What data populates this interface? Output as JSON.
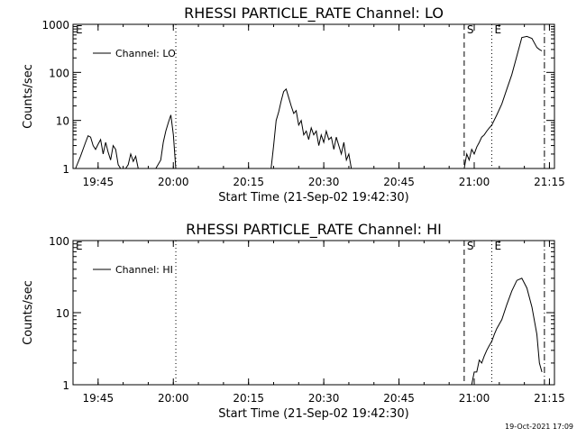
{
  "colors": {
    "background": "#ffffff",
    "foreground": "#000000"
  },
  "footer": {
    "timestamp": "19-Oct-2021 17:09"
  },
  "chart_data": [
    {
      "type": "line",
      "title": "RHESSI PARTICLE_RATE Channel: LO",
      "xlabel": "Start Time (21-Sep-02 19:42:30)",
      "ylabel": "Counts/sec",
      "yscale": "log",
      "xlim": [
        -2.5,
        93.5
      ],
      "ylim": [
        1,
        1000
      ],
      "x_tick_labels": [
        "19:45",
        "20:00",
        "20:15",
        "20:30",
        "20:45",
        "21:00",
        "21:15"
      ],
      "y_tick_labels": [
        "1",
        "10",
        "100",
        "1000"
      ],
      "legend": {
        "entries": [
          "Channel: LO"
        ],
        "placement": "top-left",
        "line_style": "solid"
      },
      "markers": [
        {
          "label": "E",
          "x": -2.5,
          "style": "dashed"
        },
        {
          "label": "",
          "x": 18.0,
          "style": "dotted"
        },
        {
          "label": "S",
          "x": 75.5,
          "style": "dashed"
        },
        {
          "label": "E",
          "x": 81.0,
          "style": "dotted"
        },
        {
          "label": "",
          "x": 91.5,
          "style": "dash-dot"
        }
      ],
      "series": [
        {
          "name": "Channel: LO",
          "x": [
            -2.0,
            -1.0,
            0.0,
            0.5,
            1.0,
            1.5,
            2.0,
            2.5,
            3.0,
            3.5,
            4.0,
            4.5,
            5.0,
            5.5,
            6.0,
            6.5,
            7.0,
            7.5,
            8.0,
            8.5,
            9.0,
            9.5,
            10.0,
            10.5,
            11.0,
            11.5,
            12.0,
            14.0,
            15.0,
            15.5,
            16.0,
            16.5,
            17.0,
            17.5,
            18.0,
            37.0,
            37.5,
            38.0,
            38.5,
            39.0,
            39.5,
            40.0,
            40.5,
            41.0,
            41.5,
            42.0,
            42.5,
            43.0,
            43.5,
            44.0,
            44.5,
            45.0,
            45.5,
            46.0,
            46.5,
            47.0,
            47.5,
            48.0,
            48.5,
            49.0,
            49.5,
            50.0,
            50.5,
            51.0,
            51.5,
            52.0,
            52.5,
            53.0,
            53.5,
            75.5,
            76.0,
            76.5,
            77.0,
            77.5,
            78.0,
            78.5,
            79.0,
            79.5,
            80.0,
            80.5,
            81.0,
            82.0,
            83.0,
            84.0,
            85.0,
            86.0,
            87.0,
            88.0,
            89.0,
            90.0,
            90.5,
            91.0
          ],
          "values": [
            1.0,
            1.8,
            3.5,
            4.8,
            4.5,
            3.0,
            2.5,
            3.2,
            4.0,
            2.0,
            3.5,
            2.2,
            1.5,
            3.0,
            2.5,
            1.2,
            1.0,
            1.0,
            1.0,
            1.2,
            2.0,
            1.4,
            1.8,
            1.0,
            1.0,
            1.0,
            1.0,
            1.0,
            1.5,
            3.5,
            6.0,
            9.0,
            13.0,
            5.0,
            1.0,
            1.0,
            3.0,
            10.0,
            15.0,
            25.0,
            40.0,
            45.0,
            30.0,
            20.0,
            14.0,
            16.0,
            8.0,
            10.0,
            5.0,
            6.0,
            4.0,
            7.0,
            5.0,
            6.0,
            3.0,
            5.0,
            3.5,
            6.0,
            4.0,
            4.5,
            2.5,
            4.5,
            3.0,
            2.0,
            3.5,
            1.5,
            2.0,
            1.0,
            1.0,
            1.0,
            2.0,
            1.5,
            2.5,
            2.0,
            2.8,
            3.5,
            4.5,
            5.0,
            6.0,
            7.0,
            8.0,
            13.0,
            22.0,
            45.0,
            90.0,
            220.0,
            530.0,
            560.0,
            510.0,
            330.0,
            300.0,
            280.0
          ]
        }
      ]
    },
    {
      "type": "line",
      "title": "RHESSI PARTICLE_RATE Channel: HI",
      "xlabel": "Start Time (21-Sep-02 19:42:30)",
      "ylabel": "Counts/sec",
      "yscale": "log",
      "xlim": [
        -2.5,
        93.5
      ],
      "ylim": [
        1,
        100
      ],
      "x_tick_labels": [
        "19:45",
        "20:00",
        "20:15",
        "20:30",
        "20:45",
        "21:00",
        "21:15"
      ],
      "y_tick_labels": [
        "1",
        "10",
        "100"
      ],
      "legend": {
        "entries": [
          "Channel: HI"
        ],
        "placement": "top-left",
        "line_style": "solid"
      },
      "markers": [
        {
          "label": "E",
          "x": -2.5,
          "style": "dashed"
        },
        {
          "label": "",
          "x": 18.0,
          "style": "dotted"
        },
        {
          "label": "S",
          "x": 75.5,
          "style": "dashed"
        },
        {
          "label": "E",
          "x": 81.0,
          "style": "dotted"
        },
        {
          "label": "",
          "x": 91.5,
          "style": "dash-dot"
        }
      ],
      "series": [
        {
          "name": "Channel: HI",
          "x": [
            77.0,
            77.5,
            78.0,
            78.5,
            79.0,
            79.5,
            80.0,
            80.5,
            81.0,
            81.5,
            82.0,
            83.0,
            84.0,
            85.0,
            86.0,
            87.0,
            88.0,
            89.0,
            90.0,
            90.5,
            91.0
          ],
          "values": [
            1.0,
            1.5,
            1.5,
            2.2,
            2.0,
            2.5,
            3.0,
            3.5,
            4.0,
            5.0,
            6.0,
            8.0,
            13.0,
            20.0,
            28.0,
            30.0,
            22.0,
            12.0,
            5.0,
            2.0,
            1.5
          ]
        }
      ]
    }
  ]
}
